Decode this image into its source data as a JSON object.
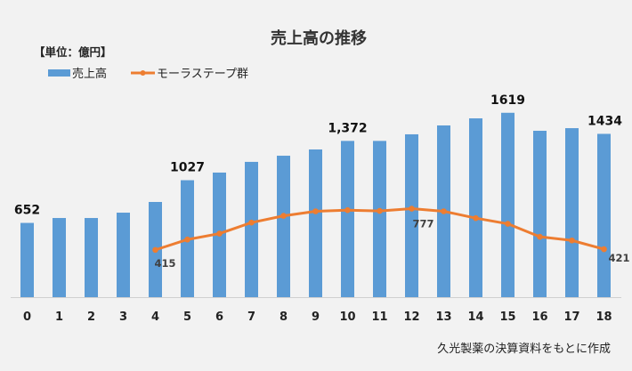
{
  "chart_data": {
    "type": "bar+line",
    "title": "売上高の推移",
    "unit_label": "【単位：億円】",
    "source_note": "久光製薬の決算資料をもとに作成",
    "categories": [
      "0",
      "1",
      "2",
      "3",
      "4",
      "5",
      "6",
      "7",
      "8",
      "9",
      "10",
      "11",
      "12",
      "13",
      "14",
      "15",
      "16",
      "17",
      "18"
    ],
    "legend_position": "top-left",
    "grid": false,
    "series": [
      {
        "name": "売上高",
        "type": "bar",
        "color": "#5B9BD5",
        "values": [
          652,
          695,
          695,
          742,
          836,
          1027,
          1094,
          1188,
          1242,
          1297,
          1372,
          1372,
          1430,
          1508,
          1570,
          1619,
          1461,
          1484,
          1434
        ],
        "data_labels": {
          "0": "652",
          "5": "1027",
          "10": "1,372",
          "15": "1619",
          "18": "1434"
        }
      },
      {
        "name": "モーラステープ群",
        "type": "line",
        "color": "#ED7D31",
        "values": [
          null,
          null,
          null,
          null,
          415,
          506,
          558,
          655,
          714,
          754,
          764,
          757,
          777,
          754,
          694,
          644,
          530,
          498,
          421
        ],
        "data_labels": {
          "4": "415",
          "12": "777",
          "18": "421"
        }
      }
    ],
    "ylim": [
      0,
      2600
    ]
  }
}
